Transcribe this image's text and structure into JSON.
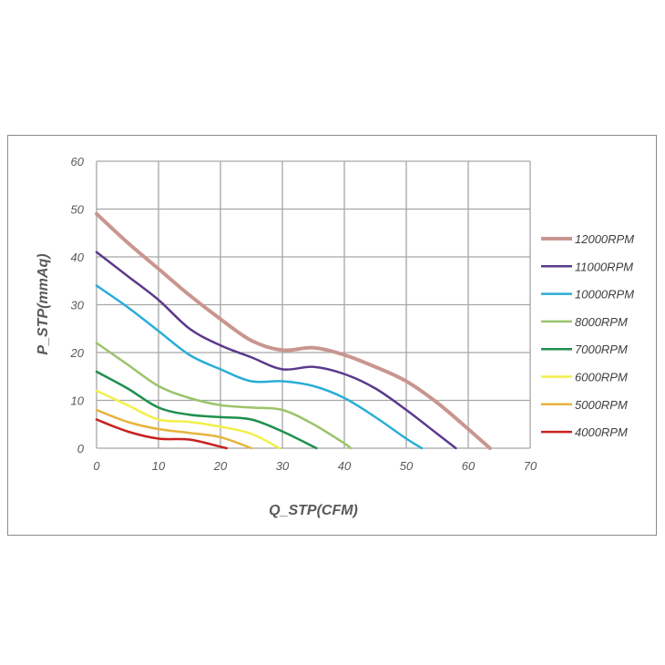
{
  "chart_data": {
    "type": "line",
    "title": "",
    "xlabel": "Q_STP(CFM)",
    "ylabel": "P_STP(mmAq)",
    "xlim": [
      0,
      70
    ],
    "ylim": [
      0,
      60
    ],
    "xticks": [
      0,
      10,
      20,
      30,
      40,
      50,
      60,
      70
    ],
    "yticks": [
      0,
      10,
      20,
      30,
      40,
      50,
      60
    ],
    "grid": true,
    "legend_position": "right",
    "series": [
      {
        "name": "12000RPM",
        "color": "#c9968f",
        "points": [
          [
            0,
            49
          ],
          [
            5,
            43
          ],
          [
            10,
            37.5
          ],
          [
            15,
            32
          ],
          [
            20,
            27
          ],
          [
            25,
            22.5
          ],
          [
            30,
            20.5
          ],
          [
            35,
            21
          ],
          [
            40,
            19.5
          ],
          [
            45,
            17
          ],
          [
            50,
            14
          ],
          [
            55,
            9.5
          ],
          [
            60,
            4
          ],
          [
            63.5,
            0
          ]
        ]
      },
      {
        "name": "11000RPM",
        "color": "#5b3a8c",
        "points": [
          [
            0,
            41
          ],
          [
            5,
            36
          ],
          [
            10,
            31
          ],
          [
            15,
            25
          ],
          [
            20,
            21.5
          ],
          [
            25,
            19
          ],
          [
            30,
            16.5
          ],
          [
            35,
            17
          ],
          [
            40,
            15.5
          ],
          [
            45,
            12.5
          ],
          [
            50,
            8
          ],
          [
            55,
            3
          ],
          [
            58,
            0
          ]
        ]
      },
      {
        "name": "10000RPM",
        "color": "#2aaed6",
        "points": [
          [
            0,
            34
          ],
          [
            5,
            29.5
          ],
          [
            10,
            24.5
          ],
          [
            15,
            19.5
          ],
          [
            20,
            16.5
          ],
          [
            25,
            14
          ],
          [
            30,
            14
          ],
          [
            35,
            13
          ],
          [
            40,
            10.5
          ],
          [
            45,
            6.5
          ],
          [
            50,
            2
          ],
          [
            52.5,
            0
          ]
        ]
      },
      {
        "name": "8000RPM",
        "color": "#9bc46a",
        "points": [
          [
            0,
            22
          ],
          [
            5,
            17.5
          ],
          [
            10,
            13
          ],
          [
            15,
            10.5
          ],
          [
            20,
            9
          ],
          [
            25,
            8.5
          ],
          [
            30,
            8
          ],
          [
            35,
            5
          ],
          [
            40,
            1
          ],
          [
            41,
            0
          ]
        ]
      },
      {
        "name": "7000RPM",
        "color": "#1f8f4e",
        "points": [
          [
            0,
            16
          ],
          [
            5,
            12.5
          ],
          [
            10,
            8.5
          ],
          [
            15,
            7
          ],
          [
            20,
            6.5
          ],
          [
            25,
            6
          ],
          [
            30,
            3.5
          ],
          [
            35.5,
            0
          ]
        ]
      },
      {
        "name": "6000RPM",
        "color": "#f2ef4a",
        "points": [
          [
            0,
            12
          ],
          [
            5,
            9
          ],
          [
            10,
            6
          ],
          [
            15,
            5.5
          ],
          [
            20,
            4.5
          ],
          [
            25,
            3
          ],
          [
            29.5,
            0
          ]
        ]
      },
      {
        "name": "5000RPM",
        "color": "#e6b43c",
        "points": [
          [
            0,
            8
          ],
          [
            5,
            5.5
          ],
          [
            10,
            4
          ],
          [
            15,
            3.2
          ],
          [
            20,
            2.3
          ],
          [
            25,
            0
          ]
        ]
      },
      {
        "name": "4000RPM",
        "color": "#c8201e",
        "points": [
          [
            0,
            6
          ],
          [
            5,
            3.5
          ],
          [
            10,
            2
          ],
          [
            15,
            1.8
          ],
          [
            20,
            0.3
          ],
          [
            21,
            0
          ]
        ]
      }
    ]
  }
}
